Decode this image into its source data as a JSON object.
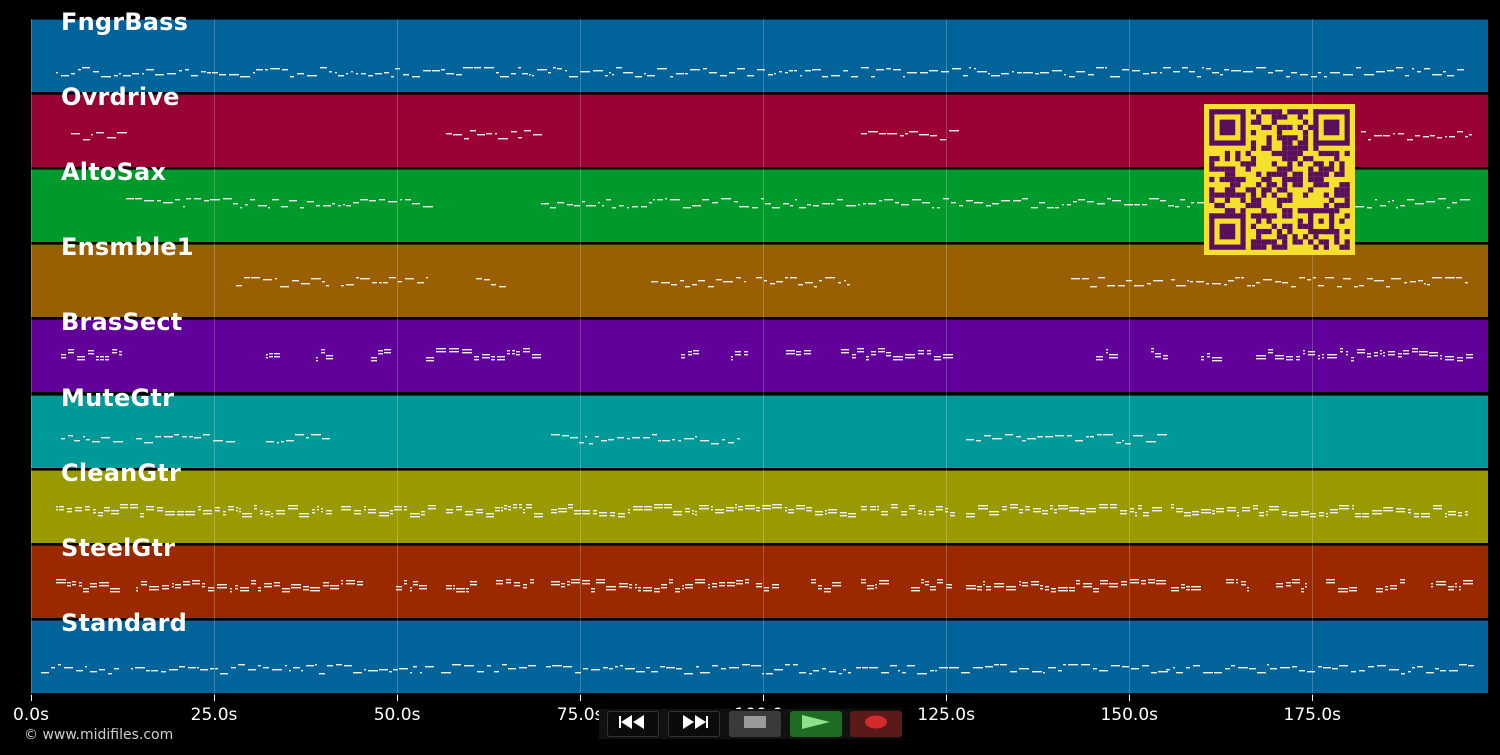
{
  "copyright": "© www.midifiles.com",
  "colors": {
    "background": "#000000",
    "tracks": [
      "#00649a",
      "#990033",
      "#00992b",
      "#995f00",
      "#62009a",
      "#00999a",
      "#999900",
      "#9a2900",
      "#00649a"
    ],
    "qr_fg": "#5a0e5e",
    "qr_bg": "#f5e02e"
  },
  "tracks": [
    {
      "name": "FngrBass"
    },
    {
      "name": "Ovrdrive"
    },
    {
      "name": "AltoSax"
    },
    {
      "name": "Ensmble1"
    },
    {
      "name": "BrasSect"
    },
    {
      "name": "MuteGtr"
    },
    {
      "name": "CleanGtr"
    },
    {
      "name": "SteelGtr"
    },
    {
      "name": "Standard"
    }
  ],
  "time_axis": {
    "unit": "s",
    "max_seconds": 199,
    "ticks": [
      {
        "value": 0,
        "label": "0.0s"
      },
      {
        "value": 25,
        "label": "25.0s"
      },
      {
        "value": 50,
        "label": "50.0s"
      },
      {
        "value": 75,
        "label": "75.0s"
      },
      {
        "value": 100,
        "label": "100.0s"
      },
      {
        "value": 125,
        "label": "125.0s"
      },
      {
        "value": 150,
        "label": "150.0s"
      },
      {
        "value": 175,
        "label": "175.0s"
      }
    ]
  },
  "transport": {
    "buttons": [
      {
        "name": "rewind-button",
        "icon": "rewind-icon"
      },
      {
        "name": "fast-forward-button",
        "icon": "fast-forward-icon"
      },
      {
        "name": "stop-button",
        "icon": "stop-icon"
      },
      {
        "name": "play-button",
        "icon": "play-icon"
      },
      {
        "name": "record-button",
        "icon": "record-icon"
      }
    ]
  }
}
